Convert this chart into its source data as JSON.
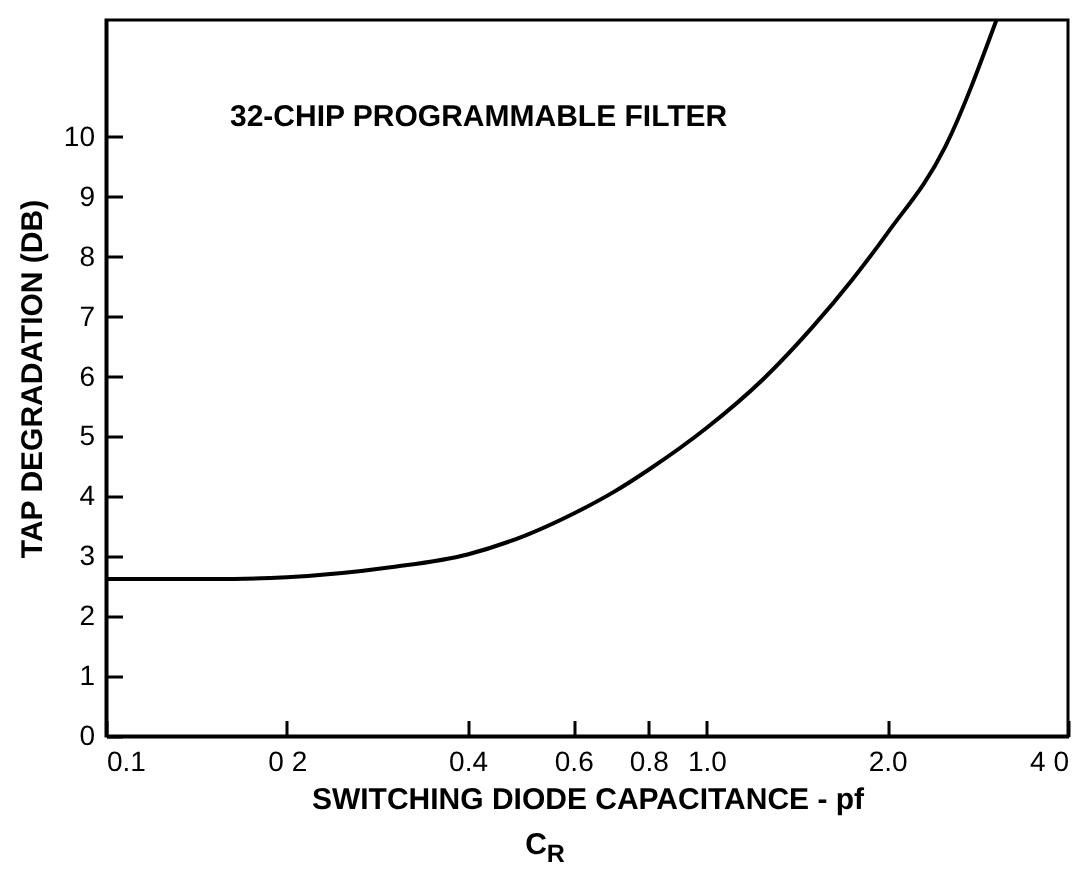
{
  "chart_data": {
    "type": "line",
    "xlabel": "SWITCHING DIODE CAPACITANCE - pf",
    "ylabel": "TAP DEGRADATION (DB)",
    "annotations": [
      "32-CHIP PROGRAMMABLE FILTER",
      "C$_{R}$"
    ],
    "log": "x",
    "grid": false,
    "marker": "none",
    "line_style": "solid",
    "xlim": [
      0.1,
      4.0
    ],
    "ylim": [
      0,
      11.95
    ],
    "xticks": [
      {
        "value": 0.1,
        "label": "0.1"
      },
      {
        "value": 0.2,
        "label": "0 2"
      },
      {
        "value": 0.4,
        "label": "0.4"
      },
      {
        "value": 0.6,
        "label": "0.6"
      },
      {
        "value": 0.8,
        "label": "0.8"
      },
      {
        "value": 1.0,
        "label": "1.0"
      },
      {
        "value": 2.0,
        "label": "2.0"
      },
      {
        "value": 4.0,
        "label": "4 0"
      }
    ],
    "yticks": [
      0,
      1,
      2,
      3,
      4,
      5,
      6,
      7,
      8,
      9,
      10
    ],
    "series": [
      {
        "color": "#000000",
        "x": [
          0.1,
          0.15,
          0.2,
          0.3,
          0.4,
          0.5,
          0.6,
          0.7,
          0.8,
          1.0,
          1.25,
          1.5,
          1.75,
          2.0,
          2.5,
          3.04
        ],
        "values": [
          2.62,
          2.62,
          2.65,
          2.82,
          3.03,
          3.35,
          3.71,
          4.07,
          4.44,
          5.14,
          5.98,
          6.82,
          7.62,
          8.39,
          9.84,
          11.95
        ]
      }
    ]
  }
}
